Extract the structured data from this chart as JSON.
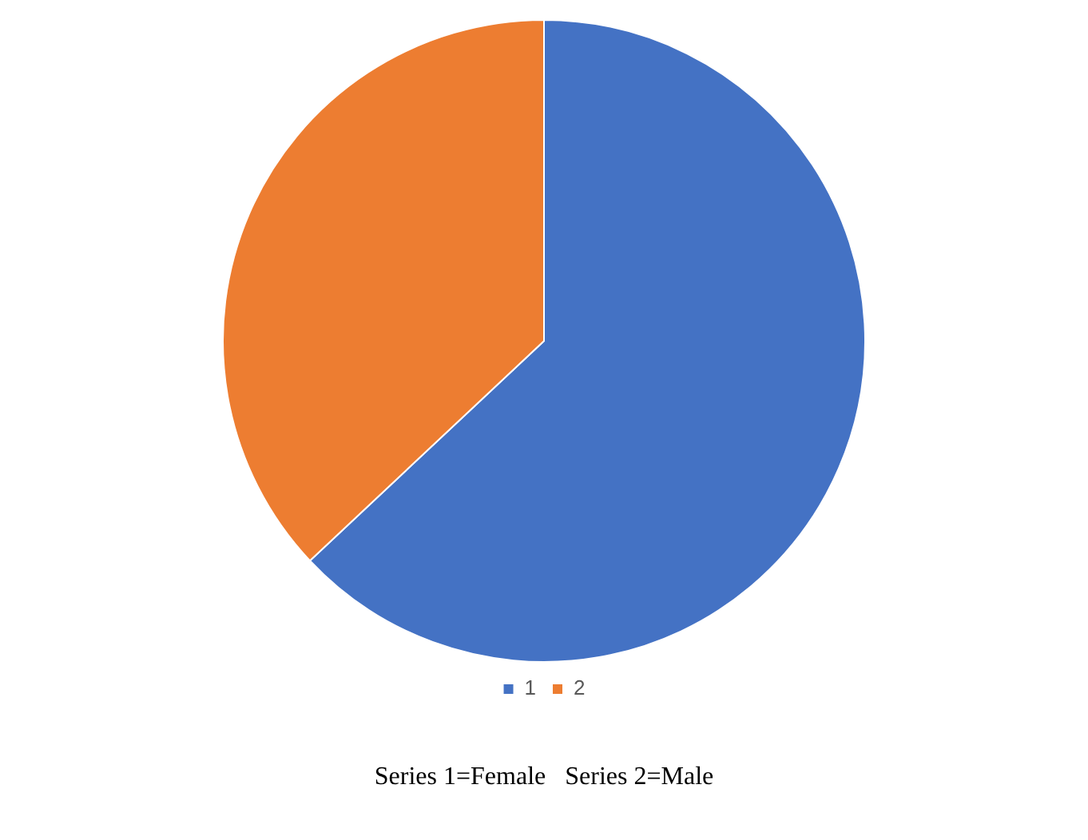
{
  "chart_data": {
    "type": "pie",
    "categories": [
      "1",
      "2"
    ],
    "values": [
      63,
      37
    ],
    "colors": [
      "#4472c4",
      "#ed7d31"
    ],
    "legend": "bottom",
    "annotations": [
      "Series 1=Female   Series 2=Male"
    ]
  }
}
